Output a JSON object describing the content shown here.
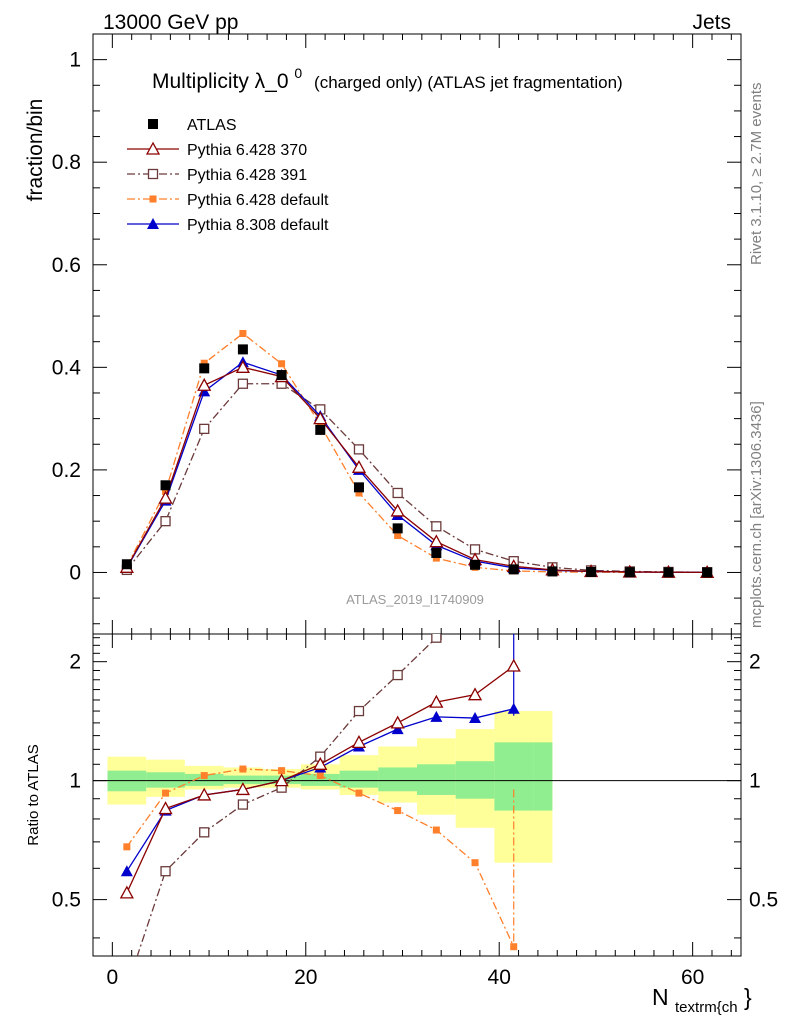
{
  "header": {
    "left_label": "13000 GeV pp",
    "right_label": "Jets"
  },
  "side_labels": {
    "rivet": "Rivet 3.1.10, ≥ 2.7M events",
    "mcplots": "mcplots.cern.ch [arXiv:1306.3436]"
  },
  "chart_data": [
    {
      "type": "scatter",
      "panel": "main",
      "title": "Multiplicity λ_0",
      "title_superscript": "0",
      "title_suffix": "(charged only) (ATLAS jet fragmentation)",
      "watermark": "ATLAS_2019_I1740909",
      "ylabel": "fraction/bin",
      "ylim": [
        -0.12,
        1.05
      ],
      "yticks": [
        "0",
        "0.2",
        "0.4",
        "0.6",
        "0.8",
        "1"
      ],
      "yticks_values": [
        0,
        0.2,
        0.4,
        0.6,
        0.8,
        1
      ],
      "xlim": [
        -2,
        65
      ],
      "x": [
        1.5,
        5.5,
        9.5,
        13.5,
        17.5,
        21.5,
        25.5,
        29.5,
        33.5,
        37.5,
        41.5,
        45.5,
        49.5,
        53.5,
        57.5,
        61.5
      ],
      "legend_position": "top-left",
      "series": [
        {
          "name": "ATLAS",
          "color": "#000000",
          "marker": "square",
          "line": "none",
          "values": [
            0.016,
            0.17,
            0.398,
            0.435,
            0.385,
            0.278,
            0.166,
            0.086,
            0.038,
            0.015,
            0.006,
            0.002,
            0.001,
            0.0005,
            0.0003,
            0.0002
          ]
        },
        {
          "name": "Pythia 6.428 370",
          "color": "#8b0000",
          "marker": "open-triangle",
          "line": "solid",
          "values": [
            0.01,
            0.145,
            0.365,
            0.4,
            0.382,
            0.3,
            0.205,
            0.12,
            0.06,
            0.025,
            0.012,
            0.005,
            0.002,
            0.001,
            0.0005,
            0.0002
          ]
        },
        {
          "name": "Pythia 6.428 391",
          "color": "#6b3a3a",
          "marker": "open-square",
          "line": "dashdot",
          "values": [
            0.005,
            0.1,
            0.28,
            0.368,
            0.368,
            0.318,
            0.24,
            0.155,
            0.09,
            0.045,
            0.022,
            0.01,
            0.004,
            0.002,
            0.001,
            0.0005
          ]
        },
        {
          "name": "Pythia 6.428 default",
          "color": "#ff7f2a",
          "marker": "filled-square",
          "line": "dashdot",
          "values": [
            0.012,
            0.158,
            0.408,
            0.466,
            0.407,
            0.288,
            0.155,
            0.072,
            0.028,
            0.01,
            0.003,
            0.001,
            0.0005,
            0.0002,
            0.0001,
            0.0001
          ]
        },
        {
          "name": "Pythia 8.308 default",
          "color": "#0000cc",
          "marker": "filled-triangle",
          "line": "solid",
          "values": [
            0.009,
            0.14,
            0.353,
            0.41,
            0.385,
            0.305,
            0.2,
            0.112,
            0.053,
            0.022,
            0.009,
            0.004,
            0.002,
            0.001,
            0.0005,
            0.0002
          ]
        }
      ]
    },
    {
      "type": "line",
      "panel": "ratio",
      "ylabel": "Ratio to ATLAS",
      "xlabel": "N_textrm{ch}",
      "xlabel_main": "N",
      "xlabel_sub": "textrm{ch",
      "xlabel_tail": "}",
      "xlim": [
        -2,
        65
      ],
      "ylim": [
        0.36,
        2.35
      ],
      "xticks": [
        "0",
        "20",
        "40",
        "60"
      ],
      "xticks_values": [
        0,
        20,
        40,
        60
      ],
      "yticks": [
        "0.5",
        "1",
        "2"
      ],
      "yticks_values": [
        0.5,
        1,
        2
      ],
      "yticks_right": [
        "0.5",
        "1",
        "2"
      ],
      "x": [
        1.5,
        5.5,
        9.5,
        13.5,
        17.5,
        21.5,
        25.5,
        29.5,
        33.5,
        37.5,
        41.5
      ],
      "bands": {
        "bin_edges": [
          -0.5,
          3.5,
          7.5,
          11.5,
          15.5,
          19.5,
          23.5,
          27.5,
          31.5,
          35.5,
          39.5,
          43.5,
          45.5
        ],
        "yellow": [
          [
            0.87,
            1.15
          ],
          [
            0.91,
            1.13
          ],
          [
            0.95,
            1.09
          ],
          [
            0.96,
            1.08
          ],
          [
            0.96,
            1.07
          ],
          [
            0.95,
            1.1
          ],
          [
            0.92,
            1.16
          ],
          [
            0.88,
            1.22
          ],
          [
            0.82,
            1.28
          ],
          [
            0.76,
            1.35
          ],
          [
            0.62,
            1.5
          ],
          [
            0.62,
            1.5
          ]
        ],
        "green": [
          [
            0.94,
            1.06
          ],
          [
            0.96,
            1.05
          ],
          [
            0.97,
            1.04
          ],
          [
            0.98,
            1.03
          ],
          [
            0.98,
            1.03
          ],
          [
            0.97,
            1.04
          ],
          [
            0.96,
            1.06
          ],
          [
            0.94,
            1.08
          ],
          [
            0.92,
            1.1
          ],
          [
            0.9,
            1.12
          ],
          [
            0.84,
            1.25
          ],
          [
            0.84,
            1.25
          ]
        ]
      },
      "series": [
        {
          "name": "Pythia 6.428 370",
          "color": "#8b0000",
          "marker": "open-triangle",
          "line": "solid",
          "values": [
            0.52,
            0.85,
            0.92,
            0.95,
            1.0,
            1.1,
            1.25,
            1.4,
            1.58,
            1.65,
            1.95
          ]
        },
        {
          "name": "Pythia 6.428 391",
          "color": "#6b3a3a",
          "marker": "open-square",
          "line": "dashdot",
          "values": [
            0.3,
            0.59,
            0.74,
            0.87,
            0.96,
            1.15,
            1.5,
            1.85,
            2.3,
            2.8,
            3.6
          ]
        },
        {
          "name": "Pythia 6.428 default",
          "color": "#ff7f2a",
          "marker": "filled-square",
          "line": "dashdot",
          "values": [
            0.68,
            0.93,
            1.03,
            1.07,
            1.06,
            1.03,
            0.93,
            0.84,
            0.75,
            0.62,
            0.38
          ]
        },
        {
          "name": "Pythia 8.308 default",
          "color": "#0000cc",
          "marker": "filled-triangle",
          "line": "solid",
          "values": [
            0.59,
            0.84,
            0.92,
            0.95,
            1.0,
            1.08,
            1.22,
            1.35,
            1.45,
            1.44,
            1.52
          ]
        }
      ]
    }
  ]
}
